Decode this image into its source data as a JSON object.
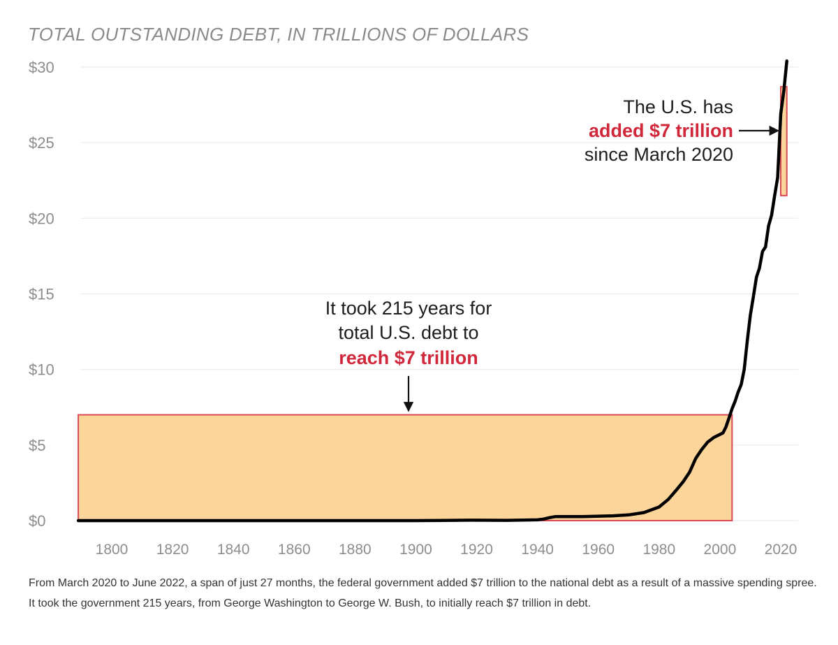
{
  "chart_data": {
    "type": "line",
    "title": "TOTAL OUTSTANDING DEBT, IN TRILLIONS OF DOLLARS",
    "xlabel": "",
    "ylabel": "",
    "xlim": [
      1789,
      2022
    ],
    "ylim": [
      0,
      30
    ],
    "y_ticks": [
      {
        "value": 0,
        "label": "$0"
      },
      {
        "value": 5,
        "label": "$5"
      },
      {
        "value": 10,
        "label": "$10"
      },
      {
        "value": 15,
        "label": "$15"
      },
      {
        "value": 20,
        "label": "$20"
      },
      {
        "value": 25,
        "label": "$25"
      },
      {
        "value": 30,
        "label": "$30"
      }
    ],
    "x_ticks": [
      {
        "value": 1800,
        "label": "1800"
      },
      {
        "value": 1820,
        "label": "1820"
      },
      {
        "value": 1840,
        "label": "1840"
      },
      {
        "value": 1860,
        "label": "1860"
      },
      {
        "value": 1880,
        "label": "1880"
      },
      {
        "value": 1900,
        "label": "1900"
      },
      {
        "value": 1920,
        "label": "1920"
      },
      {
        "value": 1940,
        "label": "1940"
      },
      {
        "value": 1960,
        "label": "1960"
      },
      {
        "value": 1980,
        "label": "1980"
      },
      {
        "value": 2000,
        "label": "2000"
      },
      {
        "value": 2020,
        "label": "2020"
      }
    ],
    "grid": true,
    "series": [
      {
        "name": "Total outstanding debt",
        "color": "#000000",
        "points": [
          [
            1789,
            0.0
          ],
          [
            1800,
            0.0
          ],
          [
            1820,
            0.0
          ],
          [
            1840,
            0.0
          ],
          [
            1860,
            0.0
          ],
          [
            1865,
            0.0
          ],
          [
            1880,
            0.0
          ],
          [
            1900,
            0.0
          ],
          [
            1918,
            0.03
          ],
          [
            1930,
            0.02
          ],
          [
            1940,
            0.05
          ],
          [
            1942,
            0.1
          ],
          [
            1944,
            0.2
          ],
          [
            1946,
            0.27
          ],
          [
            1955,
            0.27
          ],
          [
            1965,
            0.32
          ],
          [
            1970,
            0.38
          ],
          [
            1975,
            0.53
          ],
          [
            1980,
            0.9
          ],
          [
            1983,
            1.4
          ],
          [
            1986,
            2.1
          ],
          [
            1988,
            2.6
          ],
          [
            1990,
            3.2
          ],
          [
            1992,
            4.1
          ],
          [
            1994,
            4.7
          ],
          [
            1996,
            5.2
          ],
          [
            1998,
            5.5
          ],
          [
            2000,
            5.7
          ],
          [
            2001,
            5.8
          ],
          [
            2002,
            6.2
          ],
          [
            2003,
            6.8
          ],
          [
            2004,
            7.4
          ],
          [
            2005,
            7.9
          ],
          [
            2006,
            8.5
          ],
          [
            2007,
            9.0
          ],
          [
            2008,
            10.0
          ],
          [
            2009,
            11.9
          ],
          [
            2010,
            13.6
          ],
          [
            2011,
            14.8
          ],
          [
            2012,
            16.1
          ],
          [
            2013,
            16.7
          ],
          [
            2014,
            17.8
          ],
          [
            2015,
            18.1
          ],
          [
            2016,
            19.5
          ],
          [
            2017,
            20.2
          ],
          [
            2018,
            21.5
          ],
          [
            2019,
            22.7
          ],
          [
            2020,
            26.9
          ],
          [
            2021,
            28.4
          ],
          [
            2022,
            30.4
          ]
        ]
      }
    ],
    "highlights": [
      {
        "name": "first-7-trillion",
        "x_range": [
          1789,
          2004
        ],
        "y_range": [
          0,
          7.0
        ],
        "fill": "#fcd59b",
        "stroke": "#d94a55"
      },
      {
        "name": "recent-7-trillion",
        "x_range": [
          2020,
          2022
        ],
        "y_range": [
          21.5,
          28.7
        ],
        "fill": "#fcd59b",
        "stroke": "#d94a55"
      }
    ],
    "annotations": [
      {
        "name": "recent-annotation",
        "lines": [
          {
            "text": "The U.S. has",
            "emphasis": false
          },
          {
            "text": "added $7 trillion",
            "emphasis": true
          },
          {
            "text": "since March 2020",
            "emphasis": false
          }
        ]
      },
      {
        "name": "historic-annotation",
        "lines": [
          {
            "text": "It took 215 years for",
            "emphasis": false
          },
          {
            "text": "total U.S. debt to",
            "emphasis": false
          },
          {
            "text": "reach $7 trillion",
            "emphasis": true
          }
        ]
      }
    ],
    "colors": {
      "accent_red": "#d0273a",
      "highlight_fill": "#fcd59b",
      "highlight_stroke": "#d94a55",
      "line": "#000000",
      "grid": "#ececec"
    }
  },
  "footnote": "From March 2020 to June 2022, a span of just 27 months, the federal government added $7 trillion to the national debt as a result of a massive spending spree. It took the government 215 years, from George Washington to George W. Bush, to initially reach $7 trillion in debt."
}
